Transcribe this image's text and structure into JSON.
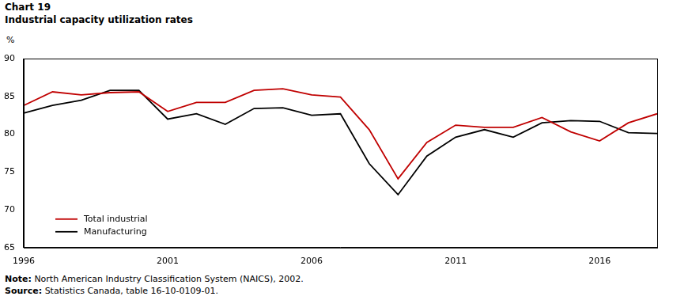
{
  "chart_data": {
    "type": "line",
    "title": "Chart 19",
    "subtitle": "Industrial capacity utilization rates",
    "y_label": "%",
    "note": {
      "label": "Note:",
      "text": "North American Industry Classification System (NAICS), 2002."
    },
    "source": {
      "label": "Source:",
      "text": "Statistics Canada, table 16-10-0109-01."
    },
    "x": [
      1996,
      1997,
      1998,
      1999,
      2000,
      2001,
      2002,
      2003,
      2004,
      2005,
      2006,
      2007,
      2008,
      2009,
      2010,
      2011,
      2012,
      2013,
      2014,
      2015,
      2016,
      2017,
      2018
    ],
    "series": [
      {
        "name": "Total industrial",
        "color": "#c00000",
        "values": [
          83.8,
          85.6,
          85.2,
          85.5,
          85.6,
          83.0,
          84.2,
          84.2,
          85.8,
          86.0,
          85.2,
          84.9,
          80.6,
          74.1,
          78.9,
          81.2,
          80.9,
          80.9,
          82.2,
          80.3,
          79.1,
          81.5,
          82.7
        ]
      },
      {
        "name": "Manufacturing",
        "color": "#000000",
        "values": [
          82.8,
          83.8,
          84.5,
          85.8,
          85.8,
          82.0,
          82.7,
          81.3,
          83.4,
          83.5,
          82.5,
          82.7,
          76.1,
          72.0,
          77.1,
          79.6,
          80.6,
          79.6,
          81.5,
          81.8,
          81.7,
          80.2,
          80.1
        ]
      }
    ],
    "xlim": [
      1996,
      2018
    ],
    "xticks": [
      1996,
      2001,
      2006,
      2011,
      2016
    ],
    "ylim": [
      65,
      90
    ],
    "yticks": [
      65,
      70,
      75,
      80,
      85,
      90
    ],
    "grid": false,
    "legend": "lower left"
  }
}
